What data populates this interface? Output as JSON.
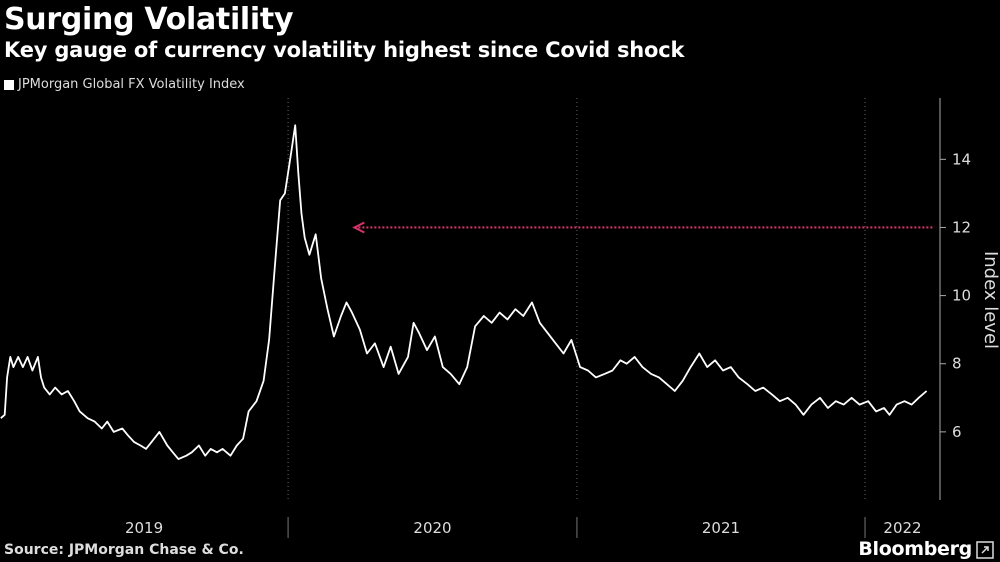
{
  "header": {
    "title": "Surging Volatility",
    "subtitle": "Key gauge of currency volatility highest since Covid shock"
  },
  "footer": {
    "source": "Source: JPMorgan Chase & Co.",
    "brand": "Bloomberg"
  },
  "chart_data": {
    "type": "line",
    "ylabel": "Index level",
    "ylim": [
      4,
      15.8
    ],
    "yticks": [
      6,
      8,
      10,
      12,
      14
    ],
    "xlim": [
      "2019-01-01",
      "2022-04-06"
    ],
    "xticks": [
      {
        "label": "2019",
        "date": "2019-01-01"
      },
      {
        "label": "2020",
        "date": "2020-01-01"
      },
      {
        "label": "2021",
        "date": "2021-01-01"
      },
      {
        "label": "2022",
        "date": "2022-01-01"
      }
    ],
    "grid": true,
    "legend_position": "top-left",
    "colors": {
      "series": "#ffffff",
      "reference": "#d6336c"
    },
    "reference_line": {
      "y": 12,
      "from": "2020-03-25",
      "to": "2022-03-30"
    },
    "series": [
      {
        "name": "JPMorgan Global FX Volatility Index",
        "points": [
          [
            "2019-01-02",
            6.4
          ],
          [
            "2019-01-07",
            6.5
          ],
          [
            "2019-01-10",
            7.6
          ],
          [
            "2019-01-14",
            8.2
          ],
          [
            "2019-01-18",
            7.9
          ],
          [
            "2019-01-24",
            8.2
          ],
          [
            "2019-01-30",
            7.9
          ],
          [
            "2019-02-05",
            8.2
          ],
          [
            "2019-02-11",
            7.8
          ],
          [
            "2019-02-18",
            8.2
          ],
          [
            "2019-02-22",
            7.6
          ],
          [
            "2019-02-26",
            7.3
          ],
          [
            "2019-03-05",
            7.1
          ],
          [
            "2019-03-12",
            7.3
          ],
          [
            "2019-03-20",
            7.1
          ],
          [
            "2019-03-28",
            7.2
          ],
          [
            "2019-04-05",
            6.9
          ],
          [
            "2019-04-12",
            6.6
          ],
          [
            "2019-04-22",
            6.4
          ],
          [
            "2019-05-01",
            6.3
          ],
          [
            "2019-05-10",
            6.1
          ],
          [
            "2019-05-17",
            6.3
          ],
          [
            "2019-05-25",
            6.0
          ],
          [
            "2019-06-05",
            6.1
          ],
          [
            "2019-06-12",
            5.9
          ],
          [
            "2019-06-20",
            5.7
          ],
          [
            "2019-06-28",
            5.6
          ],
          [
            "2019-07-05",
            5.5
          ],
          [
            "2019-07-12",
            5.7
          ],
          [
            "2019-07-22",
            6.0
          ],
          [
            "2019-08-01",
            5.6
          ],
          [
            "2019-08-08",
            5.4
          ],
          [
            "2019-08-15",
            5.2
          ],
          [
            "2019-08-25",
            5.3
          ],
          [
            "2019-09-01",
            5.4
          ],
          [
            "2019-09-10",
            5.6
          ],
          [
            "2019-09-18",
            5.3
          ],
          [
            "2019-09-25",
            5.5
          ],
          [
            "2019-10-03",
            5.4
          ],
          [
            "2019-10-10",
            5.5
          ],
          [
            "2019-10-20",
            5.3
          ],
          [
            "2019-10-28",
            5.6
          ],
          [
            "2019-11-05",
            5.8
          ],
          [
            "2019-11-12",
            6.6
          ],
          [
            "2019-11-22",
            6.9
          ],
          [
            "2019-12-01",
            7.5
          ],
          [
            "2019-12-08",
            8.7
          ],
          [
            "2019-12-15",
            10.8
          ],
          [
            "2019-12-22",
            12.8
          ],
          [
            "2019-12-28",
            13.0
          ],
          [
            "2020-01-05",
            14.2
          ],
          [
            "2020-01-10",
            15.0
          ],
          [
            "2020-01-14",
            13.6
          ],
          [
            "2020-01-18",
            12.4
          ],
          [
            "2020-01-22",
            11.7
          ],
          [
            "2020-01-28",
            11.2
          ],
          [
            "2020-02-05",
            11.8
          ],
          [
            "2020-02-12",
            10.5
          ],
          [
            "2020-02-20",
            9.6
          ],
          [
            "2020-02-28",
            8.8
          ],
          [
            "2020-03-08",
            9.4
          ],
          [
            "2020-03-15",
            9.8
          ],
          [
            "2020-03-22",
            9.5
          ],
          [
            "2020-04-01",
            9.0
          ],
          [
            "2020-04-10",
            8.3
          ],
          [
            "2020-04-20",
            8.6
          ],
          [
            "2020-05-01",
            7.9
          ],
          [
            "2020-05-10",
            8.5
          ],
          [
            "2020-05-20",
            7.7
          ],
          [
            "2020-06-01",
            8.2
          ],
          [
            "2020-06-08",
            9.2
          ],
          [
            "2020-06-15",
            8.9
          ],
          [
            "2020-06-25",
            8.4
          ],
          [
            "2020-07-05",
            8.8
          ],
          [
            "2020-07-15",
            7.9
          ],
          [
            "2020-07-25",
            7.7
          ],
          [
            "2020-08-05",
            7.4
          ],
          [
            "2020-08-15",
            7.9
          ],
          [
            "2020-08-25",
            9.1
          ],
          [
            "2020-09-05",
            9.4
          ],
          [
            "2020-09-15",
            9.2
          ],
          [
            "2020-09-25",
            9.5
          ],
          [
            "2020-10-05",
            9.3
          ],
          [
            "2020-10-15",
            9.6
          ],
          [
            "2020-10-25",
            9.4
          ],
          [
            "2020-11-05",
            9.8
          ],
          [
            "2020-11-15",
            9.2
          ],
          [
            "2020-11-25",
            8.9
          ],
          [
            "2020-12-05",
            8.6
          ],
          [
            "2020-12-15",
            8.3
          ],
          [
            "2020-12-25",
            8.7
          ],
          [
            "2021-01-05",
            7.9
          ],
          [
            "2021-01-15",
            7.8
          ],
          [
            "2021-01-25",
            7.6
          ],
          [
            "2021-02-05",
            7.7
          ],
          [
            "2021-02-15",
            7.8
          ],
          [
            "2021-02-25",
            8.1
          ],
          [
            "2021-03-05",
            8.0
          ],
          [
            "2021-03-15",
            8.2
          ],
          [
            "2021-03-25",
            7.9
          ],
          [
            "2021-04-05",
            7.7
          ],
          [
            "2021-04-15",
            7.6
          ],
          [
            "2021-04-25",
            7.4
          ],
          [
            "2021-05-05",
            7.2
          ],
          [
            "2021-05-15",
            7.5
          ],
          [
            "2021-05-25",
            7.9
          ],
          [
            "2021-06-05",
            8.3
          ],
          [
            "2021-06-15",
            7.9
          ],
          [
            "2021-06-25",
            8.1
          ],
          [
            "2021-07-05",
            7.8
          ],
          [
            "2021-07-15",
            7.9
          ],
          [
            "2021-07-25",
            7.6
          ],
          [
            "2021-08-05",
            7.4
          ],
          [
            "2021-08-15",
            7.2
          ],
          [
            "2021-08-25",
            7.3
          ],
          [
            "2021-09-05",
            7.1
          ],
          [
            "2021-09-15",
            6.9
          ],
          [
            "2021-09-25",
            7.0
          ],
          [
            "2021-10-05",
            6.8
          ],
          [
            "2021-10-15",
            6.5
          ],
          [
            "2021-10-25",
            6.8
          ],
          [
            "2021-11-05",
            7.0
          ],
          [
            "2021-11-15",
            6.7
          ],
          [
            "2021-11-25",
            6.9
          ],
          [
            "2021-12-05",
            6.8
          ],
          [
            "2021-12-15",
            7.0
          ],
          [
            "2021-12-25",
            6.8
          ],
          [
            "2022-01-05",
            6.9
          ],
          [
            "2022-01-15",
            6.6
          ],
          [
            "2022-01-25",
            6.7
          ],
          [
            "2022-02-01",
            6.5
          ],
          [
            "2022-02-10",
            6.8
          ],
          [
            "2022-02-20",
            6.9
          ],
          [
            "2022-03-01",
            6.8
          ],
          [
            "2022-03-10",
            7.0
          ],
          [
            "2022-03-20",
            7.2
          ]
        ]
      }
    ]
  }
}
